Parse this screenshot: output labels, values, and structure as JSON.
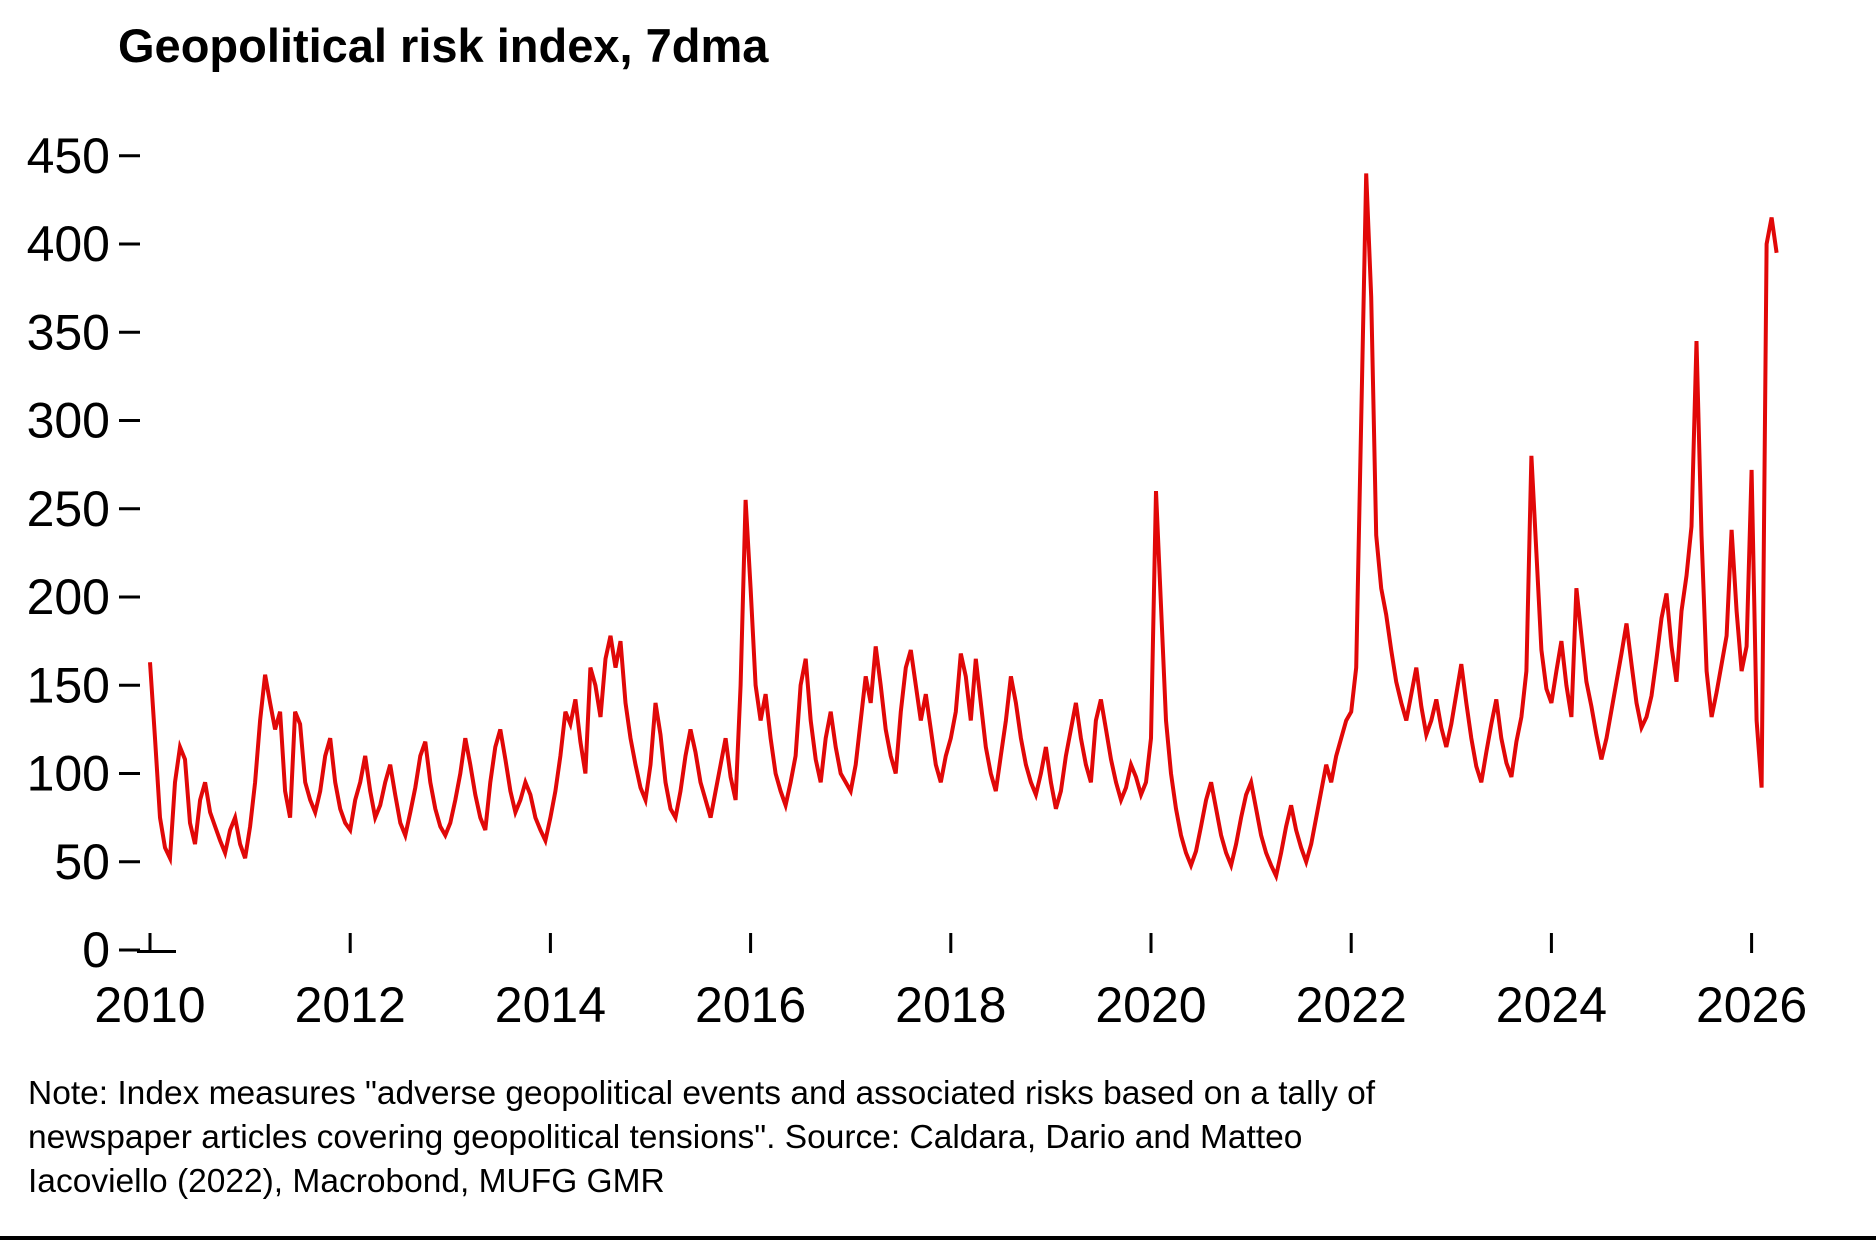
{
  "title": "Geopolitical risk index, 7dma",
  "note": {
    "line1": "Note: Index measures \"adverse geopolitical events and associated risks based on a tally of",
    "line2": "newspaper articles covering geopolitical tensions\". Source: Caldara, Dario and Matteo",
    "line3": "Iacoviello (2022), Macrobond, MUFG GMR"
  },
  "chart_data": {
    "type": "line",
    "title": "Geopolitical risk index, 7dma",
    "series_name": "Geopolitical risk index (7-day moving average)",
    "line_color": "#e10808",
    "axis_color": "#000000",
    "xlabel": "",
    "ylabel": "",
    "x_ticks": [
      2010,
      2012,
      2014,
      2016,
      2018,
      2020,
      2022,
      2024,
      2026
    ],
    "y_ticks": [
      0,
      50,
      100,
      150,
      200,
      250,
      300,
      350,
      400,
      450
    ],
    "ylim": [
      0,
      475
    ],
    "xlim": [
      2010.0,
      2026.25
    ],
    "grid": false,
    "legend": "none",
    "x_start": 2010.0,
    "x_step": 0.05,
    "values": [
      163,
      120,
      75,
      58,
      52,
      95,
      115,
      108,
      72,
      60,
      85,
      95,
      78,
      70,
      62,
      55,
      68,
      75,
      60,
      52,
      70,
      95,
      130,
      156,
      140,
      125,
      135,
      90,
      75,
      135,
      128,
      95,
      85,
      78,
      90,
      110,
      120,
      95,
      80,
      72,
      68,
      85,
      95,
      110,
      90,
      75,
      82,
      95,
      105,
      88,
      72,
      65,
      78,
      92,
      110,
      118,
      95,
      80,
      70,
      65,
      72,
      85,
      100,
      120,
      105,
      88,
      75,
      68,
      95,
      115,
      125,
      108,
      90,
      78,
      85,
      95,
      88,
      75,
      68,
      62,
      75,
      90,
      110,
      135,
      128,
      142,
      118,
      100,
      160,
      150,
      132,
      165,
      178,
      160,
      175,
      140,
      120,
      105,
      92,
      85,
      105,
      140,
      122,
      95,
      80,
      75,
      90,
      110,
      125,
      112,
      95,
      85,
      75,
      90,
      105,
      120,
      98,
      85,
      150,
      255,
      205,
      150,
      130,
      145,
      120,
      100,
      90,
      82,
      95,
      110,
      150,
      165,
      130,
      108,
      95,
      120,
      135,
      115,
      100,
      95,
      90,
      105,
      130,
      155,
      140,
      172,
      150,
      125,
      110,
      100,
      135,
      160,
      170,
      150,
      130,
      145,
      125,
      105,
      95,
      110,
      120,
      135,
      168,
      155,
      130,
      165,
      140,
      115,
      100,
      90,
      110,
      130,
      155,
      140,
      120,
      105,
      95,
      88,
      100,
      115,
      95,
      80,
      90,
      110,
      125,
      140,
      120,
      105,
      95,
      130,
      142,
      125,
      108,
      95,
      85,
      92,
      105,
      98,
      88,
      95,
      120,
      260,
      195,
      130,
      100,
      80,
      65,
      55,
      48,
      56,
      70,
      85,
      95,
      80,
      65,
      55,
      48,
      60,
      75,
      88,
      95,
      80,
      65,
      55,
      48,
      42,
      55,
      70,
      82,
      68,
      58,
      50,
      60,
      75,
      90,
      105,
      95,
      110,
      120,
      130,
      135,
      160,
      300,
      440,
      370,
      235,
      205,
      190,
      170,
      152,
      140,
      130,
      145,
      160,
      138,
      122,
      130,
      142,
      126,
      115,
      128,
      145,
      162,
      140,
      120,
      104,
      95,
      112,
      128,
      142,
      120,
      106,
      98,
      118,
      132,
      158,
      280,
      225,
      170,
      148,
      140,
      158,
      175,
      150,
      132,
      205,
      178,
      152,
      138,
      122,
      108,
      120,
      136,
      152,
      168,
      185,
      162,
      140,
      126,
      132,
      144,
      165,
      188,
      202,
      172,
      152,
      192,
      212,
      240,
      345,
      235,
      158,
      132,
      146,
      162,
      178,
      238,
      192,
      158,
      172,
      272,
      130,
      92,
      400,
      415,
      395
    ]
  }
}
